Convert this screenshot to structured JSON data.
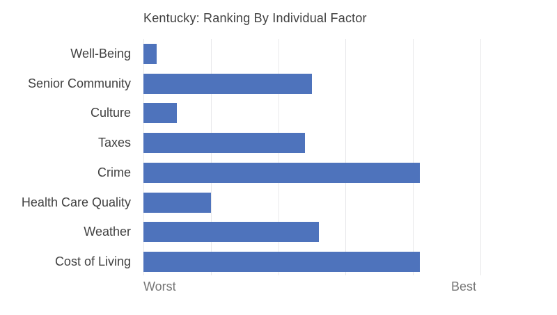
{
  "title": "Kentucky: Ranking By Individual Factor",
  "axis": {
    "left_label": "Worst",
    "right_label": "Best"
  },
  "colors": {
    "bar": "#4e73bc",
    "gridline": "#e8e8ea",
    "title_text": "#404040",
    "category_text": "#404040",
    "axis_text": "#767676",
    "background": "#ffffff"
  },
  "chart_data": {
    "type": "bar",
    "orientation": "horizontal",
    "title": "Kentucky: Ranking By Individual Factor",
    "categories": [
      "Well-Being",
      "Senior Community",
      "Culture",
      "Taxes",
      "Crime",
      "Health Care Quality",
      "Weather",
      "Cost of Living"
    ],
    "values": [
      2,
      25,
      5,
      24,
      41,
      10,
      26,
      41
    ],
    "xlabel": "",
    "ylabel": "",
    "x_tick_labels": [
      "Worst",
      "Best"
    ],
    "xlim": [
      0,
      50
    ],
    "gridline_step": 10,
    "grid": true,
    "legend": false
  }
}
